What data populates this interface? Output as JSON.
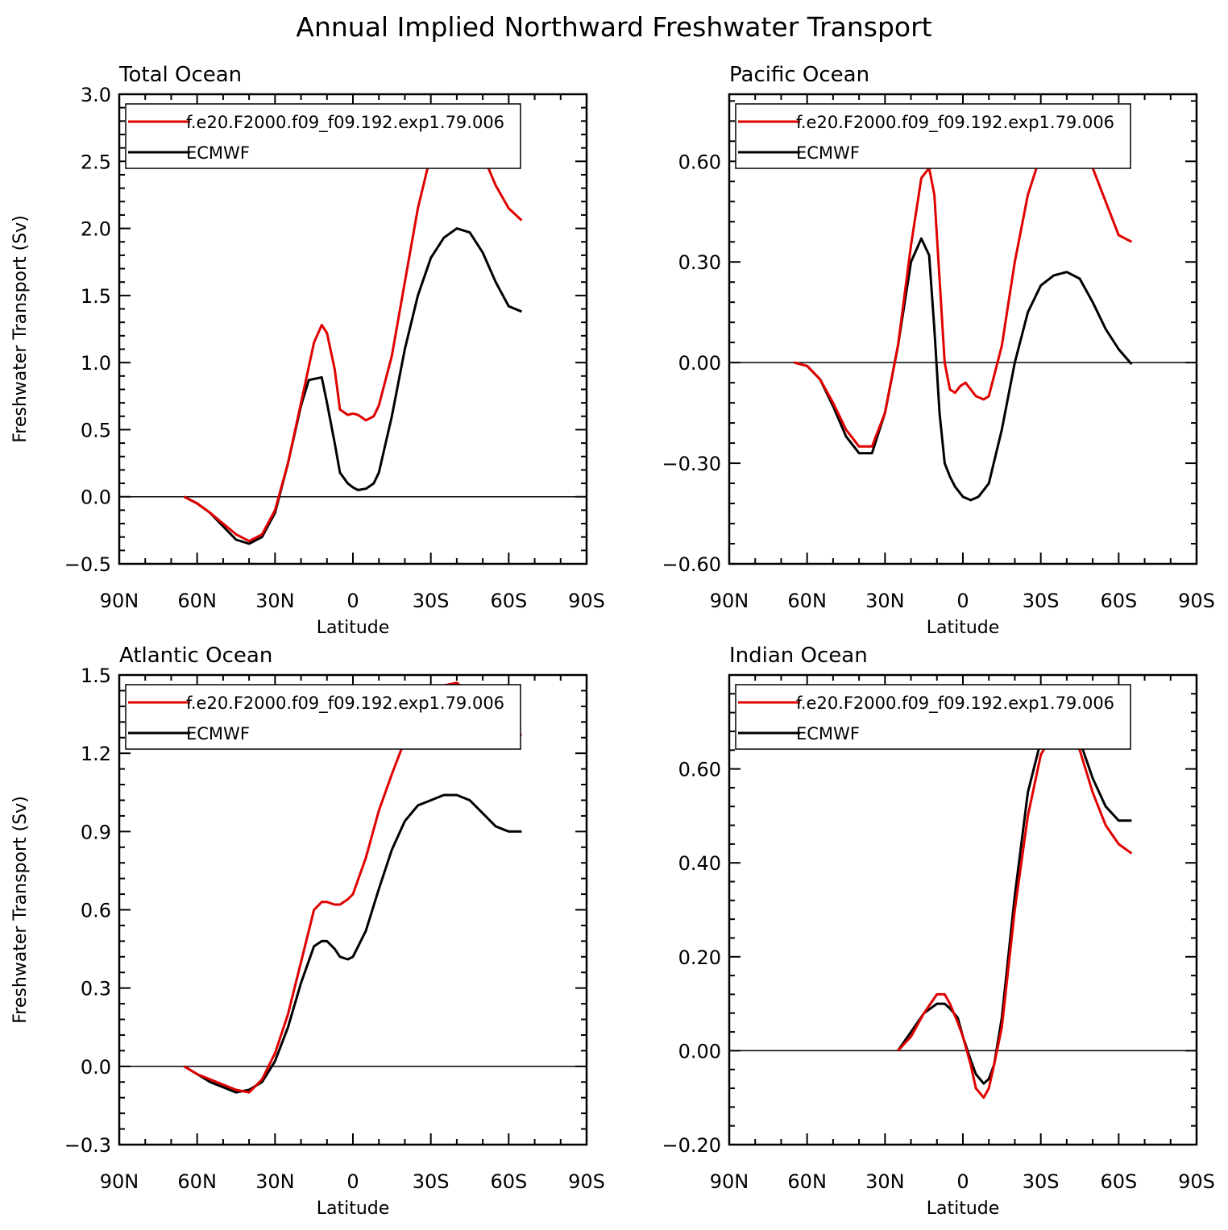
{
  "figure_title": "Annual Implied Northward Freshwater Transport",
  "chart_data": [
    {
      "type": "line",
      "title": "Total Ocean",
      "xlabel": "Latitude",
      "ylabel": "Freshwater Transport (Sv)",
      "xlim": [
        90,
        -90
      ],
      "ylim": [
        -0.5,
        3.0
      ],
      "xticks": [
        90,
        60,
        30,
        0,
        -30,
        -60,
        -90
      ],
      "xtick_labels": [
        "90N",
        "60N",
        "30N",
        "0",
        "30S",
        "60S",
        "90S"
      ],
      "yticks": [
        -0.5,
        0,
        0.5,
        1.0,
        1.5,
        2.0,
        2.5,
        3.0
      ],
      "ytick_labels": [
        "−0.5",
        "0.0",
        "0.5",
        "1.0",
        "1.5",
        "2.0",
        "2.5",
        "3.0"
      ],
      "zero_line": true,
      "legend": "top-left",
      "series": [
        {
          "name": "f.e20.F2000.f09_f09.192.exp1.79.006",
          "color": "#e00000",
          "x": [
            65,
            60,
            55,
            50,
            45,
            40,
            35,
            30,
            25,
            20,
            15,
            12,
            10,
            7,
            5,
            2,
            0,
            -2,
            -5,
            -8,
            -10,
            -15,
            -20,
            -25,
            -30,
            -35,
            -40,
            -45,
            -50,
            -55,
            -60,
            -65
          ],
          "y": [
            0,
            -0.05,
            -0.12,
            -0.2,
            -0.28,
            -0.33,
            -0.28,
            -0.1,
            0.25,
            0.7,
            1.15,
            1.28,
            1.22,
            0.95,
            0.65,
            0.61,
            0.62,
            0.61,
            0.57,
            0.6,
            0.68,
            1.05,
            1.6,
            2.15,
            2.55,
            2.75,
            2.84,
            2.78,
            2.55,
            2.32,
            2.15,
            2.06
          ]
        },
        {
          "name": "ECMWF",
          "color": "#000000",
          "x": [
            65,
            60,
            55,
            50,
            45,
            40,
            35,
            30,
            25,
            20,
            17,
            12,
            10,
            7,
            5,
            2,
            0,
            -2,
            -5,
            -8,
            -10,
            -15,
            -20,
            -25,
            -30,
            -35,
            -40,
            -45,
            -50,
            -55,
            -60,
            -65
          ],
          "y": [
            0,
            -0.05,
            -0.12,
            -0.22,
            -0.32,
            -0.35,
            -0.3,
            -0.12,
            0.25,
            0.68,
            0.87,
            0.89,
            0.7,
            0.4,
            0.18,
            0.1,
            0.07,
            0.05,
            0.06,
            0.1,
            0.18,
            0.6,
            1.1,
            1.5,
            1.78,
            1.93,
            2.0,
            1.97,
            1.82,
            1.6,
            1.42,
            1.38
          ]
        }
      ]
    },
    {
      "type": "line",
      "title": "Pacific Ocean",
      "xlabel": "Latitude",
      "ylabel": "",
      "xlim": [
        90,
        -90
      ],
      "ylim": [
        -0.6,
        0.8
      ],
      "xticks": [
        90,
        60,
        30,
        0,
        -30,
        -60,
        -90
      ],
      "xtick_labels": [
        "90N",
        "60N",
        "30N",
        "0",
        "30S",
        "60S",
        "90S"
      ],
      "yticks": [
        -0.6,
        -0.3,
        0,
        0.3,
        0.6
      ],
      "ytick_labels": [
        "−0.60",
        "−0.30",
        "0.00",
        "0.30",
        "0.60"
      ],
      "zero_line": true,
      "legend": "top-left",
      "series": [
        {
          "name": "f.e20.F2000.f09_f09.192.exp1.79.006",
          "color": "#e00000",
          "x": [
            65,
            60,
            55,
            50,
            45,
            40,
            35,
            30,
            25,
            20,
            16,
            13,
            11,
            9,
            7,
            5,
            3,
            1,
            -1,
            -3,
            -5,
            -8,
            -10,
            -15,
            -20,
            -25,
            -30,
            -35,
            -40,
            -45,
            -50,
            -55,
            -60,
            -65
          ],
          "y": [
            0,
            -0.01,
            -0.05,
            -0.12,
            -0.2,
            -0.25,
            -0.25,
            -0.15,
            0.05,
            0.35,
            0.55,
            0.58,
            0.5,
            0.25,
            0.0,
            -0.08,
            -0.09,
            -0.07,
            -0.06,
            -0.08,
            -0.1,
            -0.11,
            -0.1,
            0.05,
            0.3,
            0.5,
            0.62,
            0.67,
            0.68,
            0.65,
            0.58,
            0.48,
            0.38,
            0.36
          ]
        },
        {
          "name": "ECMWF",
          "color": "#000000",
          "x": [
            65,
            60,
            55,
            50,
            45,
            40,
            35,
            30,
            25,
            20,
            16,
            13,
            11,
            9,
            7,
            5,
            3,
            0,
            -3,
            -6,
            -8,
            -10,
            -15,
            -20,
            -25,
            -30,
            -35,
            -40,
            -45,
            -50,
            -55,
            -60,
            -65
          ],
          "y": [
            0,
            -0.01,
            -0.05,
            -0.13,
            -0.22,
            -0.27,
            -0.27,
            -0.15,
            0.05,
            0.3,
            0.37,
            0.32,
            0.1,
            -0.15,
            -0.3,
            -0.34,
            -0.37,
            -0.4,
            -0.41,
            -0.4,
            -0.38,
            -0.36,
            -0.2,
            0.0,
            0.15,
            0.23,
            0.26,
            0.27,
            0.25,
            0.18,
            0.1,
            0.04,
            -0.005
          ]
        }
      ]
    },
    {
      "type": "line",
      "title": "Atlantic Ocean",
      "xlabel": "Latitude",
      "ylabel": "Freshwater Transport (Sv)",
      "xlim": [
        90,
        -90
      ],
      "ylim": [
        -0.3,
        1.5
      ],
      "xticks": [
        90,
        60,
        30,
        0,
        -30,
        -60,
        -90
      ],
      "xtick_labels": [
        "90N",
        "60N",
        "30N",
        "0",
        "30S",
        "60S",
        "90S"
      ],
      "yticks": [
        -0.3,
        0,
        0.3,
        0.6,
        0.9,
        1.2,
        1.5
      ],
      "ytick_labels": [
        "−0.3",
        "0.0",
        "0.3",
        "0.6",
        "0.9",
        "1.2",
        "1.5"
      ],
      "zero_line": true,
      "legend": "top-left",
      "series": [
        {
          "name": "f.e20.F2000.f09_f09.192.exp1.79.006",
          "color": "#e00000",
          "x": [
            65,
            60,
            55,
            50,
            45,
            40,
            35,
            30,
            25,
            20,
            15,
            12,
            10,
            7,
            5,
            2,
            0,
            -5,
            -10,
            -15,
            -20,
            -25,
            -30,
            -35,
            -40,
            -45,
            -50,
            -55,
            -60,
            -65
          ],
          "y": [
            0,
            -0.03,
            -0.05,
            -0.07,
            -0.09,
            -0.1,
            -0.05,
            0.05,
            0.2,
            0.4,
            0.6,
            0.63,
            0.63,
            0.62,
            0.62,
            0.64,
            0.66,
            0.8,
            0.98,
            1.12,
            1.25,
            1.36,
            1.43,
            1.46,
            1.47,
            1.43,
            1.38,
            1.33,
            1.28,
            1.27
          ]
        },
        {
          "name": "ECMWF",
          "color": "#000000",
          "x": [
            65,
            60,
            55,
            50,
            45,
            40,
            35,
            30,
            25,
            20,
            15,
            12,
            10,
            7,
            5,
            2,
            0,
            -5,
            -10,
            -15,
            -20,
            -25,
            -30,
            -35,
            -40,
            -45,
            -50,
            -55,
            -60,
            -65
          ],
          "y": [
            0,
            -0.03,
            -0.06,
            -0.08,
            -0.1,
            -0.09,
            -0.06,
            0.02,
            0.15,
            0.32,
            0.46,
            0.48,
            0.48,
            0.45,
            0.42,
            0.41,
            0.42,
            0.52,
            0.68,
            0.83,
            0.94,
            1.0,
            1.02,
            1.04,
            1.04,
            1.02,
            0.97,
            0.92,
            0.9,
            0.9
          ]
        }
      ]
    },
    {
      "type": "line",
      "title": "Indian Ocean",
      "xlabel": "Latitude",
      "ylabel": "",
      "xlim": [
        90,
        -90
      ],
      "ylim": [
        -0.2,
        0.8
      ],
      "xticks": [
        90,
        60,
        30,
        0,
        -30,
        -60,
        -90
      ],
      "xtick_labels": [
        "90N",
        "60N",
        "30N",
        "0",
        "30S",
        "60S",
        "90S"
      ],
      "yticks": [
        -0.2,
        0,
        0.2,
        0.4,
        0.6
      ],
      "ytick_labels": [
        "−0.20",
        "0.00",
        "0.20",
        "0.40",
        "0.60"
      ],
      "zero_line": true,
      "legend": "top-left",
      "series": [
        {
          "name": "f.e20.F2000.f09_f09.192.exp1.79.006",
          "color": "#e00000",
          "x": [
            25,
            20,
            15,
            10,
            7,
            5,
            2,
            0,
            -3,
            -5,
            -8,
            -10,
            -12,
            -15,
            -20,
            -25,
            -30,
            -35,
            -40,
            -42,
            -45,
            -50,
            -55,
            -60,
            -65
          ],
          "y": [
            0.0,
            0.03,
            0.08,
            0.12,
            0.12,
            0.1,
            0.06,
            0.03,
            -0.03,
            -0.08,
            -0.1,
            -0.08,
            -0.03,
            0.05,
            0.3,
            0.5,
            0.63,
            0.68,
            0.69,
            0.68,
            0.64,
            0.55,
            0.48,
            0.44,
            0.42
          ]
        },
        {
          "name": "ECMWF",
          "color": "#000000",
          "x": [
            25,
            20,
            15,
            10,
            7,
            5,
            2,
            0,
            -3,
            -5,
            -8,
            -10,
            -12,
            -15,
            -20,
            -25,
            -30,
            -35,
            -40,
            -42,
            -45,
            -50,
            -55,
            -60,
            -65
          ],
          "y": [
            0.0,
            0.04,
            0.08,
            0.1,
            0.1,
            0.09,
            0.07,
            0.03,
            -0.02,
            -0.05,
            -0.07,
            -0.06,
            -0.03,
            0.07,
            0.33,
            0.55,
            0.66,
            0.7,
            0.71,
            0.7,
            0.66,
            0.58,
            0.52,
            0.49,
            0.49
          ]
        }
      ]
    }
  ]
}
